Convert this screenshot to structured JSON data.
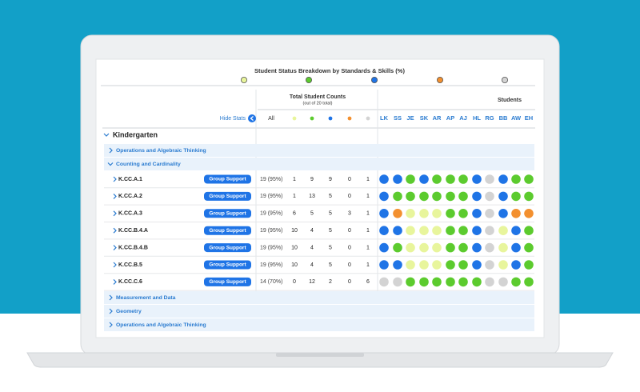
{
  "header": {
    "title": "Student Status Breakdown by Standards & Skills (%)",
    "legend_colors": [
      "#e8f59c",
      "#5ccb2e",
      "#1f74e6",
      "#f3902f",
      "#d3d3d3"
    ]
  },
  "totals_header": {
    "title": "Total Student Counts",
    "subtitle": "(out of 20 total)"
  },
  "students_header": "Students",
  "hide_stats": "Hide Stats",
  "columns": {
    "all": "All",
    "status_colors": [
      "#e8f59c",
      "#5ccb2e",
      "#1f74e6",
      "#f3902f",
      "#d3d3d3"
    ],
    "students": [
      "LK",
      "SS",
      "JE",
      "SK",
      "AR",
      "AP",
      "AJ",
      "HL",
      "RG",
      "BB",
      "AW",
      "EH"
    ]
  },
  "section": "Kindergarten",
  "groups_before": [
    "Operations and Algebraic Thinking"
  ],
  "group": "Counting and Cardinality",
  "rows": [
    {
      "label": "K.CC.A.1",
      "action": "Group Support",
      "total": "19 (95%)",
      "counts": [
        1,
        9,
        9,
        0,
        1
      ],
      "students": [
        "#1f74e6",
        "#1f74e6",
        "#5ccb2e",
        "#1f74e6",
        "#5ccb2e",
        "#5ccb2e",
        "#5ccb2e",
        "#1f74e6",
        "#d3d3d3",
        "#1f74e6",
        "#5ccb2e",
        "#5ccb2e"
      ]
    },
    {
      "label": "K.CC.A.2",
      "action": "Group Support",
      "total": "19 (95%)",
      "counts": [
        1,
        13,
        5,
        0,
        1
      ],
      "students": [
        "#1f74e6",
        "#5ccb2e",
        "#5ccb2e",
        "#5ccb2e",
        "#5ccb2e",
        "#5ccb2e",
        "#5ccb2e",
        "#1f74e6",
        "#d3d3d3",
        "#1f74e6",
        "#5ccb2e",
        "#5ccb2e"
      ]
    },
    {
      "label": "K.CC.A.3",
      "action": "Group Support",
      "total": "19 (95%)",
      "counts": [
        6,
        5,
        5,
        3,
        1
      ],
      "students": [
        "#1f74e6",
        "#f3902f",
        "#e8f59c",
        "#e8f59c",
        "#e8f59c",
        "#5ccb2e",
        "#5ccb2e",
        "#1f74e6",
        "#d3d3d3",
        "#1f74e6",
        "#f3902f",
        "#f3902f"
      ]
    },
    {
      "label": "K.CC.B.4.A",
      "action": "Group Support",
      "total": "19 (95%)",
      "counts": [
        10,
        4,
        5,
        0,
        1
      ],
      "students": [
        "#1f74e6",
        "#1f74e6",
        "#e8f59c",
        "#e8f59c",
        "#e8f59c",
        "#5ccb2e",
        "#5ccb2e",
        "#1f74e6",
        "#d3d3d3",
        "#e8f59c",
        "#1f74e6",
        "#5ccb2e"
      ]
    },
    {
      "label": "K.CC.B.4.B",
      "action": "Group Support",
      "total": "19 (95%)",
      "counts": [
        10,
        4,
        5,
        0,
        1
      ],
      "students": [
        "#1f74e6",
        "#5ccb2e",
        "#e8f59c",
        "#e8f59c",
        "#e8f59c",
        "#5ccb2e",
        "#5ccb2e",
        "#1f74e6",
        "#d3d3d3",
        "#e8f59c",
        "#1f74e6",
        "#5ccb2e"
      ]
    },
    {
      "label": "K.CC.B.5",
      "action": "Group Support",
      "total": "19 (95%)",
      "counts": [
        10,
        4,
        5,
        0,
        1
      ],
      "students": [
        "#1f74e6",
        "#1f74e6",
        "#e8f59c",
        "#e8f59c",
        "#e8f59c",
        "#5ccb2e",
        "#5ccb2e",
        "#1f74e6",
        "#d3d3d3",
        "#e8f59c",
        "#1f74e6",
        "#5ccb2e"
      ]
    },
    {
      "label": "K.CC.C.6",
      "action": "Group Support",
      "total": "14 (70%)",
      "counts": [
        0,
        12,
        2,
        0,
        6
      ],
      "students": [
        "#d3d3d3",
        "#d3d3d3",
        "#5ccb2e",
        "#5ccb2e",
        "#5ccb2e",
        "#5ccb2e",
        "#5ccb2e",
        "#5ccb2e",
        "#d3d3d3",
        "#d3d3d3",
        "#5ccb2e",
        "#5ccb2e"
      ]
    }
  ],
  "groups_after": [
    "Measurement and Data",
    "Geometry",
    "Operations and Algebraic Thinking"
  ]
}
